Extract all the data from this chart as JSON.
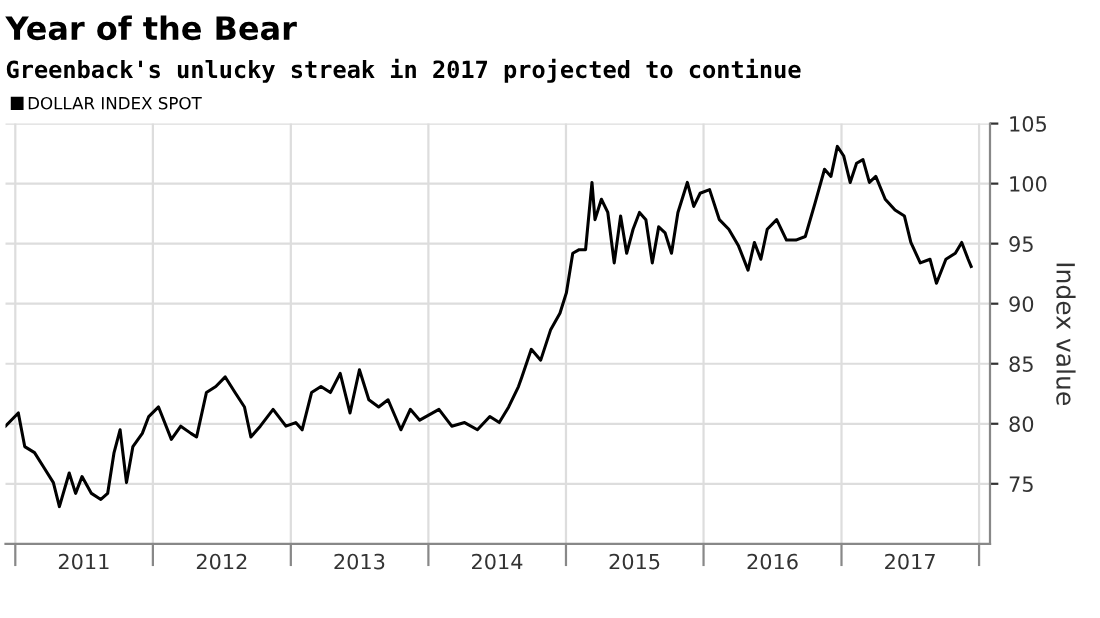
{
  "chart_data": {
    "type": "line",
    "title": "Year of the Bear",
    "subtitle": "Greenback's unlucky streak in 2017 projected to continue",
    "ylabel": "Index value",
    "legend": "top left",
    "grid": true,
    "line_style": "solid",
    "xlim": [
      "2010-12-06",
      "2018-01-30"
    ],
    "xticks": [
      {
        "value": "2011-01-01",
        "label": null
      },
      {
        "value": "2011-07-02",
        "label": "2011"
      },
      {
        "value": "2012-01-01",
        "label": null
      },
      {
        "value": "2012-07-02",
        "label": "2012"
      },
      {
        "value": "2013-01-01",
        "label": null
      },
      {
        "value": "2013-07-02",
        "label": "2013"
      },
      {
        "value": "2014-01-01",
        "label": null
      },
      {
        "value": "2014-07-02",
        "label": "2014"
      },
      {
        "value": "2015-01-01",
        "label": null
      },
      {
        "value": "2015-07-02",
        "label": "2015"
      },
      {
        "value": "2016-01-01",
        "label": null
      },
      {
        "value": "2016-07-02",
        "label": "2016"
      },
      {
        "value": "2017-01-01",
        "label": null
      },
      {
        "value": "2017-07-02",
        "label": "2017"
      },
      {
        "value": "2018-01-01",
        "label": null
      }
    ],
    "ylim": [
      70,
      105
    ],
    "yticks": [
      75,
      80,
      85,
      90,
      95,
      100,
      105
    ],
    "series": [
      {
        "name": "DOLLAR INDEX SPOT",
        "color": "#000000",
        "x": [
          "2010-12-06",
          "2011-01-09",
          "2011-01-26",
          "2011-02-21",
          "2011-03-17",
          "2011-04-12",
          "2011-04-28",
          "2011-05-24",
          "2011-06-10",
          "2011-06-27",
          "2011-07-22",
          "2011-08-16",
          "2011-09-03",
          "2011-09-20",
          "2011-10-06",
          "2011-10-23",
          "2011-11-09",
          "2011-12-04",
          "2011-12-21",
          "2012-01-16",
          "2012-02-19",
          "2012-03-15",
          "2012-04-11",
          "2012-04-26",
          "2012-05-22",
          "2012-06-16",
          "2012-07-11",
          "2012-08-06",
          "2012-08-31",
          "2012-09-17",
          "2012-10-12",
          "2012-11-15",
          "2012-12-19",
          "2013-01-14",
          "2013-01-31",
          "2013-02-25",
          "2013-03-22",
          "2013-04-16",
          "2013-05-12",
          "2013-06-07",
          "2013-07-02",
          "2013-07-27",
          "2013-08-22",
          "2013-09-16",
          "2013-10-20",
          "2013-11-14",
          "2013-12-09",
          "2014-01-29",
          "2014-03-04",
          "2014-04-07",
          "2014-05-11",
          "2014-06-13",
          "2014-07-08",
          "2014-08-02",
          "2014-08-28",
          "2014-09-06",
          "2014-10-01",
          "2014-10-26",
          "2014-11-21",
          "2014-12-16",
          "2015-01-02",
          "2015-01-19",
          "2015-02-05",
          "2015-02-22",
          "2015-03-11",
          "2015-03-19",
          "2015-04-05",
          "2015-04-22",
          "2015-05-09",
          "2015-05-26",
          "2015-06-11",
          "2015-06-28",
          "2015-07-15",
          "2015-08-01",
          "2015-08-18",
          "2015-09-04",
          "2015-09-21",
          "2015-10-08",
          "2015-10-25",
          "2015-11-19",
          "2015-12-06",
          "2015-12-23",
          "2016-01-17",
          "2016-02-12",
          "2016-03-08",
          "2016-04-03",
          "2016-04-28",
          "2016-05-15",
          "2016-06-01",
          "2016-06-18",
          "2016-07-13",
          "2016-08-08",
          "2016-09-02",
          "2016-09-27",
          "2016-10-23",
          "2016-11-17",
          "2016-12-04",
          "2016-12-21",
          "2017-01-07",
          "2017-01-24",
          "2017-02-10",
          "2017-02-27",
          "2017-03-16",
          "2017-04-02",
          "2017-04-27",
          "2017-05-23",
          "2017-06-17",
          "2017-07-04",
          "2017-07-29",
          "2017-08-24",
          "2017-09-10",
          "2017-10-05",
          "2017-10-30",
          "2017-11-16",
          "2017-12-03",
          "2017-12-11"
        ],
        "values": [
          79.8,
          80.9,
          78.1,
          77.6,
          76.4,
          75.1,
          73.1,
          75.9,
          74.2,
          75.6,
          74.2,
          73.7,
          74.2,
          77.6,
          79.5,
          75.1,
          78.1,
          79.2,
          80.6,
          81.4,
          78.7,
          79.8,
          79.2,
          78.9,
          82.6,
          83.1,
          83.9,
          82.6,
          81.4,
          78.9,
          79.8,
          81.2,
          79.8,
          80.1,
          79.5,
          82.6,
          83.1,
          82.6,
          84.2,
          80.9,
          84.5,
          82.0,
          81.4,
          82.0,
          79.5,
          81.2,
          80.3,
          81.2,
          79.8,
          80.1,
          79.5,
          80.6,
          80.1,
          81.4,
          83.1,
          83.9,
          86.2,
          85.3,
          87.8,
          89.2,
          90.9,
          94.2,
          94.5,
          94.5,
          100.1,
          97.0,
          98.7,
          97.6,
          93.4,
          97.3,
          94.2,
          96.2,
          97.6,
          97.0,
          93.4,
          96.4,
          95.9,
          94.2,
          97.6,
          100.1,
          98.1,
          99.2,
          99.5,
          97.0,
          96.2,
          94.8,
          92.8,
          95.1,
          93.7,
          96.2,
          97.0,
          95.3,
          95.3,
          95.6,
          98.4,
          101.2,
          100.6,
          103.1,
          102.3,
          100.1,
          101.7,
          102.0,
          100.1,
          100.6,
          98.7,
          97.8,
          97.3,
          95.1,
          93.4,
          93.7,
          91.7,
          93.7,
          94.2,
          95.1,
          93.7,
          93.1
        ]
      }
    ]
  }
}
